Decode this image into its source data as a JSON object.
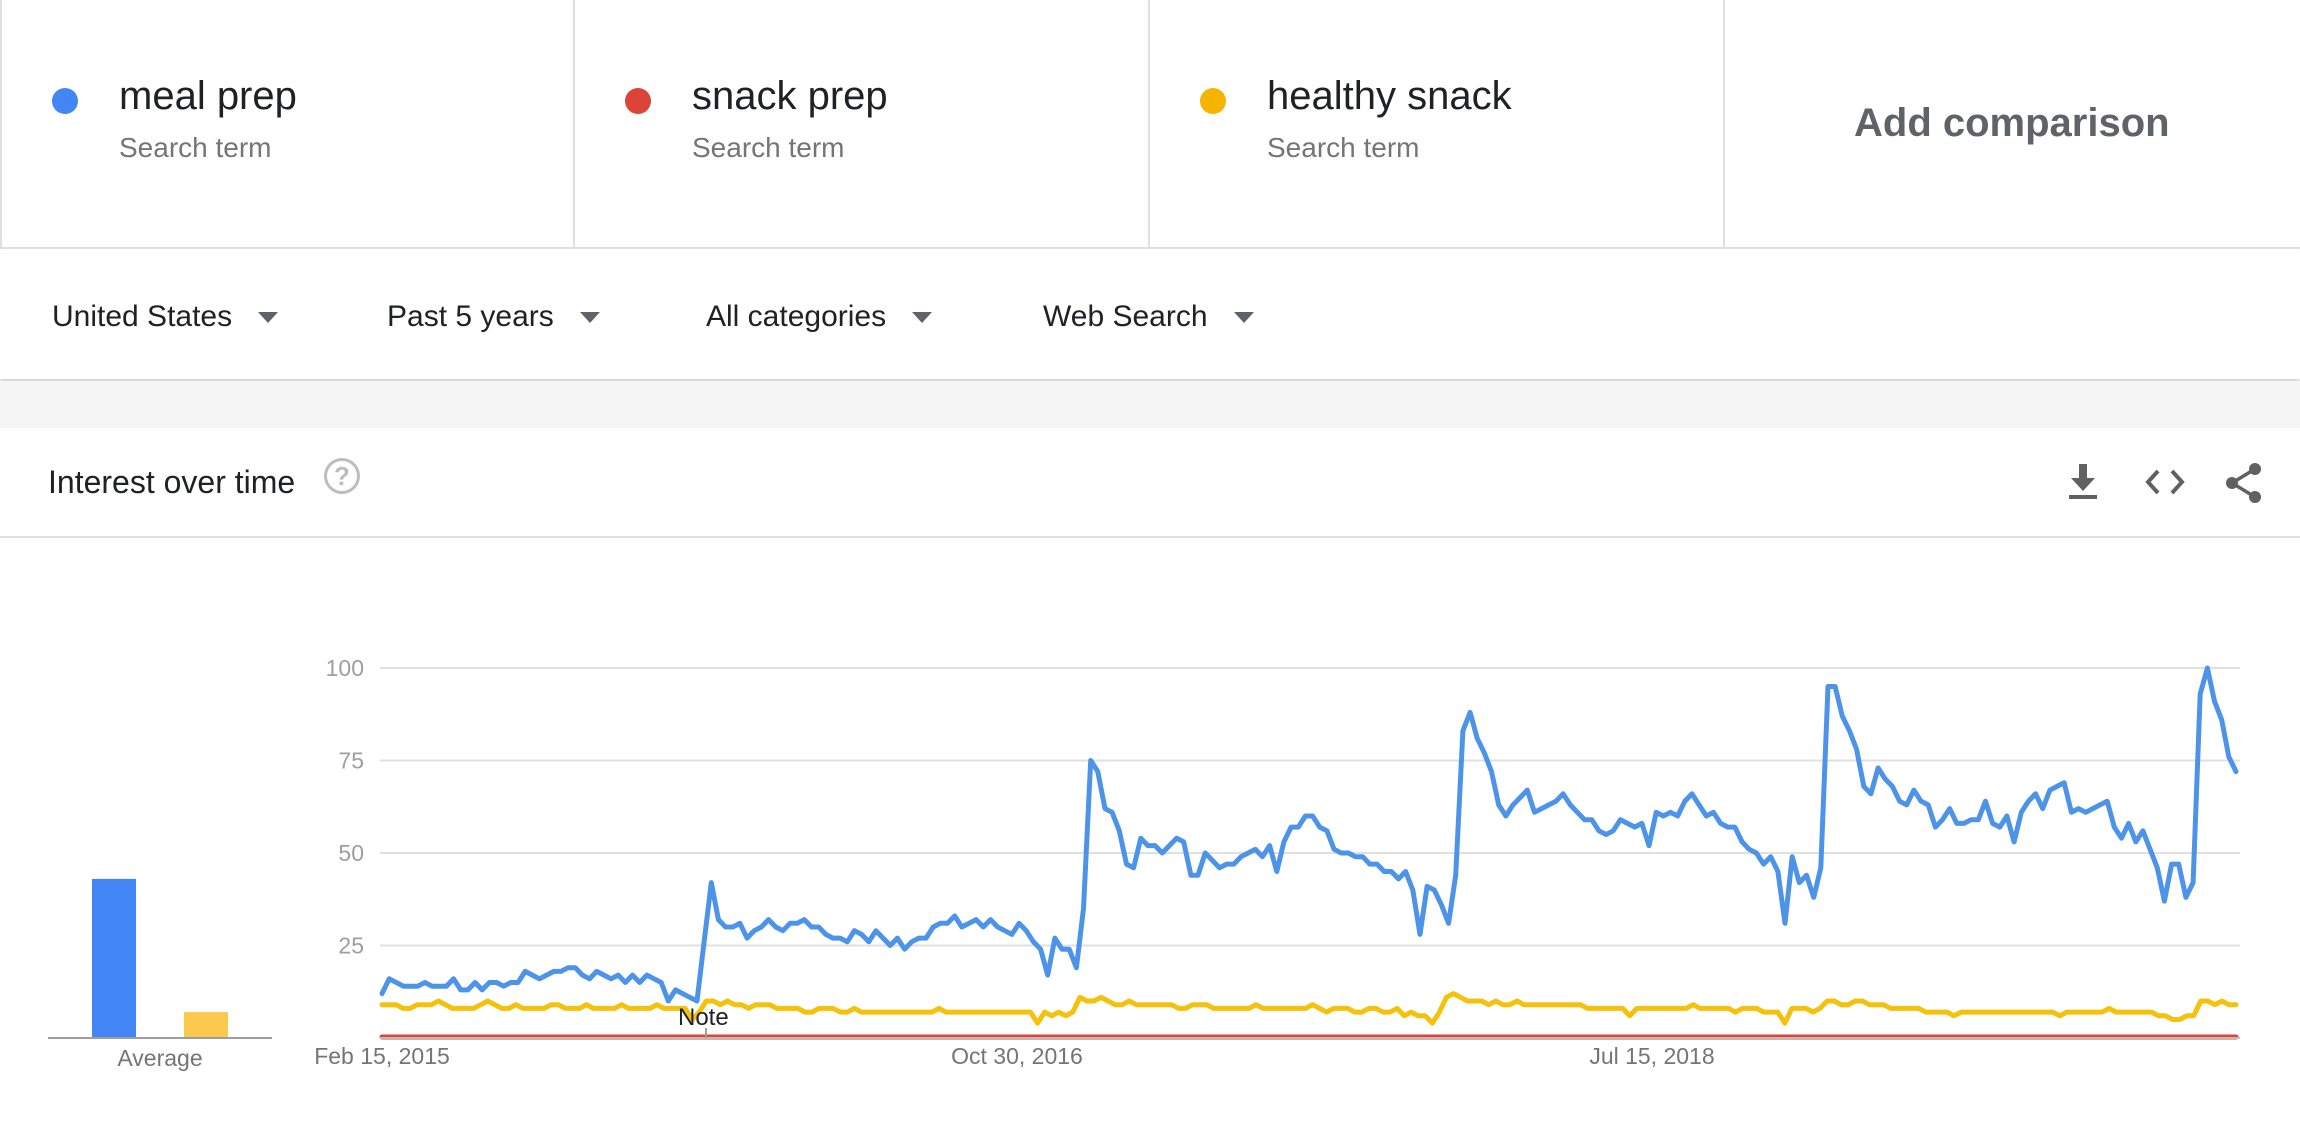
{
  "terms": [
    {
      "name": "meal prep",
      "subtitle": "Search term",
      "color": "#4285f4"
    },
    {
      "name": "snack prep",
      "subtitle": "Search term",
      "color": "#db4437"
    },
    {
      "name": "healthy snack",
      "subtitle": "Search term",
      "color": "#f4b400"
    }
  ],
  "add_comparison": {
    "label": "Add comparison",
    "icon": "plus-icon"
  },
  "filters": {
    "region": "United States",
    "time": "Past 5 years",
    "category": "All categories",
    "search_type": "Web Search"
  },
  "card": {
    "title": "Interest over time",
    "help_icon": "?",
    "tools": [
      "download-icon",
      "embed-code-icon",
      "share-icon"
    ]
  },
  "chart_data": {
    "type": "line",
    "x_tick_labels": [
      "Feb 15, 2015",
      "Oct 30, 2016",
      "Jul 15, 2018"
    ],
    "y_ticks": [
      25,
      50,
      75,
      100
    ],
    "ylim": [
      0,
      100
    ],
    "grid": true,
    "annotation": "Note",
    "average_label": "Average",
    "averages": [
      {
        "series": "meal prep",
        "value": 43,
        "color": "#4285f4"
      },
      {
        "series": "healthy snack",
        "value": 7,
        "color": "#fbc94d"
      }
    ],
    "series": [
      {
        "name": "meal prep",
        "color": "#4d94e8",
        "values": [
          12,
          16,
          15,
          14,
          14,
          14,
          15,
          14,
          14,
          14,
          16,
          13,
          13,
          15,
          13,
          15,
          15,
          14,
          15,
          15,
          18,
          17,
          16,
          17,
          18,
          18,
          19,
          19,
          17,
          16,
          18,
          17,
          16,
          17,
          15,
          17,
          15,
          17,
          16,
          15,
          10,
          13,
          12,
          11,
          10,
          26,
          42,
          32,
          30,
          30,
          31,
          27,
          29,
          30,
          32,
          30,
          29,
          31,
          31,
          32,
          30,
          30,
          28,
          27,
          27,
          26,
          29,
          28,
          26,
          29,
          27,
          25,
          27,
          24,
          26,
          27,
          27,
          30,
          31,
          31,
          33,
          30,
          31,
          32,
          30,
          32,
          30,
          29,
          28,
          31,
          29,
          26,
          24,
          17,
          27,
          24,
          24,
          19,
          35,
          75,
          72,
          62,
          61,
          56,
          47,
          46,
          54,
          52,
          52,
          50,
          52,
          54,
          53,
          44,
          44,
          50,
          48,
          46,
          47,
          47,
          49,
          50,
          51,
          49,
          52,
          45,
          53,
          57,
          57,
          60,
          60,
          57,
          56,
          51,
          50,
          50,
          49,
          49,
          47,
          47,
          45,
          45,
          43,
          45,
          40,
          28,
          41,
          40,
          36,
          31,
          44,
          83,
          88,
          81,
          77,
          72,
          63,
          60,
          63,
          65,
          67,
          61,
          62,
          63,
          64,
          66,
          63,
          61,
          59,
          59,
          56,
          55,
          56,
          59,
          58,
          57,
          58,
          52,
          61,
          60,
          61,
          60,
          64,
          66,
          63,
          60,
          61,
          58,
          57,
          57,
          53,
          51,
          50,
          47,
          49,
          45,
          31,
          49,
          42,
          44,
          38,
          46,
          95,
          95,
          87,
          83,
          78,
          68,
          66,
          73,
          70,
          68,
          64,
          63,
          67,
          64,
          63,
          57,
          59,
          62,
          58,
          58,
          59,
          59,
          64,
          58,
          57,
          60,
          53,
          61,
          64,
          66,
          62,
          67,
          68,
          69,
          61,
          62,
          61,
          62,
          63,
          64,
          57,
          54,
          58,
          53,
          56,
          51,
          46,
          37,
          47,
          47,
          38,
          42,
          93,
          100,
          91,
          86,
          76,
          72
        ]
      },
      {
        "name": "snack prep",
        "color": "#db4437",
        "values": [
          0
        ]
      },
      {
        "name": "healthy snack",
        "color": "#f4c20d",
        "values": [
          9,
          9,
          9,
          8,
          8,
          9,
          9,
          9,
          10,
          9,
          8,
          8,
          8,
          8,
          9,
          10,
          9,
          8,
          8,
          9,
          8,
          8,
          8,
          8,
          9,
          9,
          8,
          8,
          8,
          9,
          8,
          8,
          8,
          8,
          9,
          8,
          8,
          8,
          8,
          9,
          8,
          8,
          8,
          8,
          5,
          7,
          10,
          10,
          9,
          10,
          9,
          9,
          8,
          9,
          9,
          9,
          8,
          8,
          8,
          8,
          7,
          7,
          8,
          8,
          8,
          7,
          7,
          8,
          7,
          7,
          7,
          7,
          7,
          7,
          7,
          7,
          7,
          7,
          7,
          8,
          7,
          7,
          7,
          7,
          7,
          7,
          7,
          7,
          7,
          7,
          7,
          7,
          7,
          4,
          7,
          6,
          7,
          6,
          7,
          11,
          10,
          10,
          11,
          10,
          9,
          9,
          10,
          9,
          9,
          9,
          9,
          9,
          9,
          8,
          8,
          9,
          9,
          9,
          8,
          8,
          8,
          8,
          8,
          8,
          9,
          8,
          8,
          8,
          8,
          8,
          8,
          8,
          9,
          8,
          7,
          8,
          8,
          8,
          7,
          7,
          8,
          8,
          7,
          7,
          8,
          6,
          7,
          6,
          6,
          4,
          7,
          11,
          12,
          11,
          10,
          10,
          10,
          9,
          10,
          9,
          9,
          10,
          9,
          9,
          9,
          9,
          9,
          9,
          9,
          9,
          9,
          8,
          8,
          8,
          8,
          8,
          8,
          6,
          8,
          8,
          8,
          8,
          8,
          8,
          8,
          8,
          9,
          8,
          8,
          8,
          8,
          8,
          7,
          8,
          8,
          8,
          7,
          7,
          7,
          4,
          8,
          8,
          8,
          7,
          8,
          10,
          10,
          9,
          9,
          10,
          10,
          9,
          9,
          9,
          8,
          8,
          8,
          8,
          8,
          7,
          7,
          7,
          7,
          6,
          7,
          7,
          7,
          7,
          7,
          7,
          7,
          7,
          7,
          7,
          7,
          7,
          7,
          7,
          6,
          7,
          7,
          7,
          7,
          7,
          7,
          8,
          7,
          7,
          7,
          7,
          7,
          7,
          6,
          6,
          5,
          5,
          6,
          6,
          10,
          10,
          9,
          10,
          9,
          9
        ]
      }
    ]
  }
}
